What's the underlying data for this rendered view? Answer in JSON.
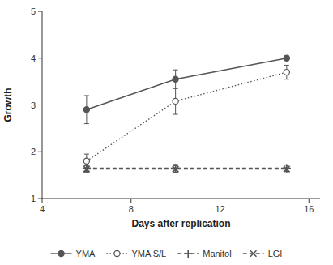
{
  "chart_data": {
    "type": "line",
    "x": [
      6,
      10,
      15
    ],
    "xlabel": "Days after replication",
    "ylabel": "Growth",
    "xlim": [
      4,
      16.5
    ],
    "ylim": [
      1,
      5
    ],
    "xticks": [
      4,
      8,
      12,
      16
    ],
    "yticks": [
      1,
      2,
      3,
      4,
      5
    ],
    "grid": false,
    "legend": "bottom",
    "series": [
      {
        "name": "YMA",
        "color": "#555555",
        "values": [
          2.9,
          3.55,
          4.0
        ],
        "errors": [
          0.3,
          0.2,
          0.05
        ],
        "marker": "circle",
        "line_style": "solid"
      },
      {
        "name": "YMA S/L",
        "color": "#555555",
        "values": [
          1.8,
          3.08,
          3.7
        ],
        "errors": [
          0.15,
          0.28,
          0.15
        ],
        "marker": "circle-open",
        "line_style": "dotted"
      },
      {
        "name": "Manitol",
        "color": "#555555",
        "values": [
          1.65,
          1.65,
          1.65
        ],
        "errors": [
          0.07,
          0.08,
          0.07
        ],
        "marker": "plus",
        "line_style": "dashed"
      },
      {
        "name": "LGI",
        "color": "#555555",
        "values": [
          1.63,
          1.63,
          1.63
        ],
        "errors": [
          0.07,
          0.07,
          0.08
        ],
        "marker": "x",
        "line_style": "dashed"
      }
    ]
  }
}
